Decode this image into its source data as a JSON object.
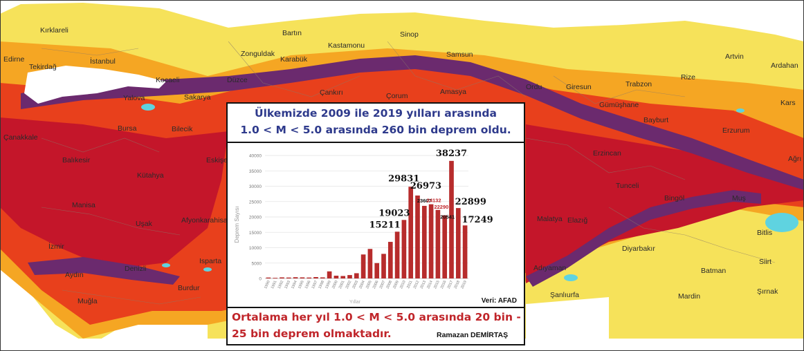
{
  "map": {
    "colors": {
      "sea": "#ffffff",
      "low": "#f6e25a",
      "mid": "#f5a623",
      "high": "#e8401c",
      "very_high": "#c4162a",
      "extreme": "#6b2a6e",
      "lake": "#5fd3e0",
      "border": "#8a7a6a"
    },
    "cities": [
      "Kırklareli",
      "Edirne",
      "Tekirdağ",
      "İstanbul",
      "Kocaeli",
      "Sakarya",
      "Düzce",
      "Bartın",
      "Zonguldak",
      "Karabük",
      "Kastamonu",
      "Sinop",
      "Samsun",
      "Çankırı",
      "Çorum",
      "Amasya",
      "Ordu",
      "Giresun",
      "Trabzon",
      "Rize",
      "Artvin",
      "Ardahan",
      "Kars",
      "Gümüşhane",
      "Bayburt",
      "Erzurum",
      "Ağrı",
      "Çanakkale",
      "Bursa",
      "Bilecik",
      "Balıkesir",
      "Eskişe",
      "Kütahya",
      "Manisa",
      "Uşak",
      "Afyonkarahisar",
      "İzmir",
      "Aydın",
      "Denizli",
      "Isparta",
      "Muğla",
      "Burdur",
      "Erzincan",
      "Tunceli",
      "Bingöl",
      "Muş",
      "Malatya",
      "Elazığ",
      "Bitlis",
      "Diyarbakır",
      "Siirt",
      "Adıyaman",
      "Batman",
      "Şanlıurfa",
      "Mardin",
      "Şırnak",
      "Yalova"
    ]
  },
  "panel": {
    "title_line1": "Ülkemizde 2009 ile 2019 yılları arasında",
    "title_line2": "1.0 < M < 5.0 arasında 260 bin deprem oldu.",
    "footer_line1": "Ortalama her yıl 1.0 < M < 5.0 arasında 20 bin -",
    "footer_line2": "25 bin deprem olmaktadır.",
    "author": "Ramazan DEMİRTAŞ",
    "source": "Veri: AFAD"
  },
  "chart_data": {
    "type": "bar",
    "xlabel": "Yıllar",
    "ylabel": "Deprem Sayısı",
    "ylim": [
      0,
      40000
    ],
    "yticks": [
      0,
      5000,
      10000,
      15000,
      20000,
      25000,
      30000,
      35000,
      40000
    ],
    "grid": true,
    "bar_color": "#b72c2c",
    "categories": [
      "1990",
      "1991",
      "1992",
      "1993",
      "1994",
      "1995",
      "1996",
      "1997",
      "1998",
      "1999",
      "2000",
      "2001",
      "2002",
      "2003",
      "2004",
      "2005",
      "2006",
      "2007",
      "2008",
      "2009",
      "2010",
      "2011",
      "2012",
      "2013",
      "2014",
      "2015",
      "2016",
      "2017",
      "2018",
      "2019"
    ],
    "values": [
      300,
      200,
      350,
      300,
      400,
      350,
      300,
      450,
      350,
      2300,
      900,
      800,
      1100,
      1700,
      7800,
      9600,
      5000,
      8000,
      11900,
      15211,
      19023,
      29831,
      26973,
      23607,
      24132,
      22290,
      20541,
      38237,
      22899,
      17249
    ],
    "annotations": [
      {
        "year": "2009",
        "text": "15211",
        "style": "big",
        "color": "#111"
      },
      {
        "year": "2010",
        "text": "19023",
        "style": "big",
        "color": "#111"
      },
      {
        "year": "2011",
        "text": "29831",
        "style": "big",
        "color": "#111"
      },
      {
        "year": "2012",
        "text": "26973",
        "style": "big",
        "color": "#111"
      },
      {
        "year": "2013",
        "text": "23607",
        "style": "small",
        "color": "#111"
      },
      {
        "year": "2014",
        "text": "24132",
        "style": "small",
        "color": "#c0252a"
      },
      {
        "year": "2015",
        "text": "22290",
        "style": "small",
        "color": "#c0252a"
      },
      {
        "year": "2016",
        "text": "20541",
        "style": "small",
        "color": "#111"
      },
      {
        "year": "2017",
        "text": "38237",
        "style": "big",
        "color": "#111"
      },
      {
        "year": "2018",
        "text": "22899",
        "style": "big",
        "color": "#111"
      },
      {
        "year": "2019",
        "text": "17249",
        "style": "big",
        "color": "#111"
      }
    ]
  }
}
